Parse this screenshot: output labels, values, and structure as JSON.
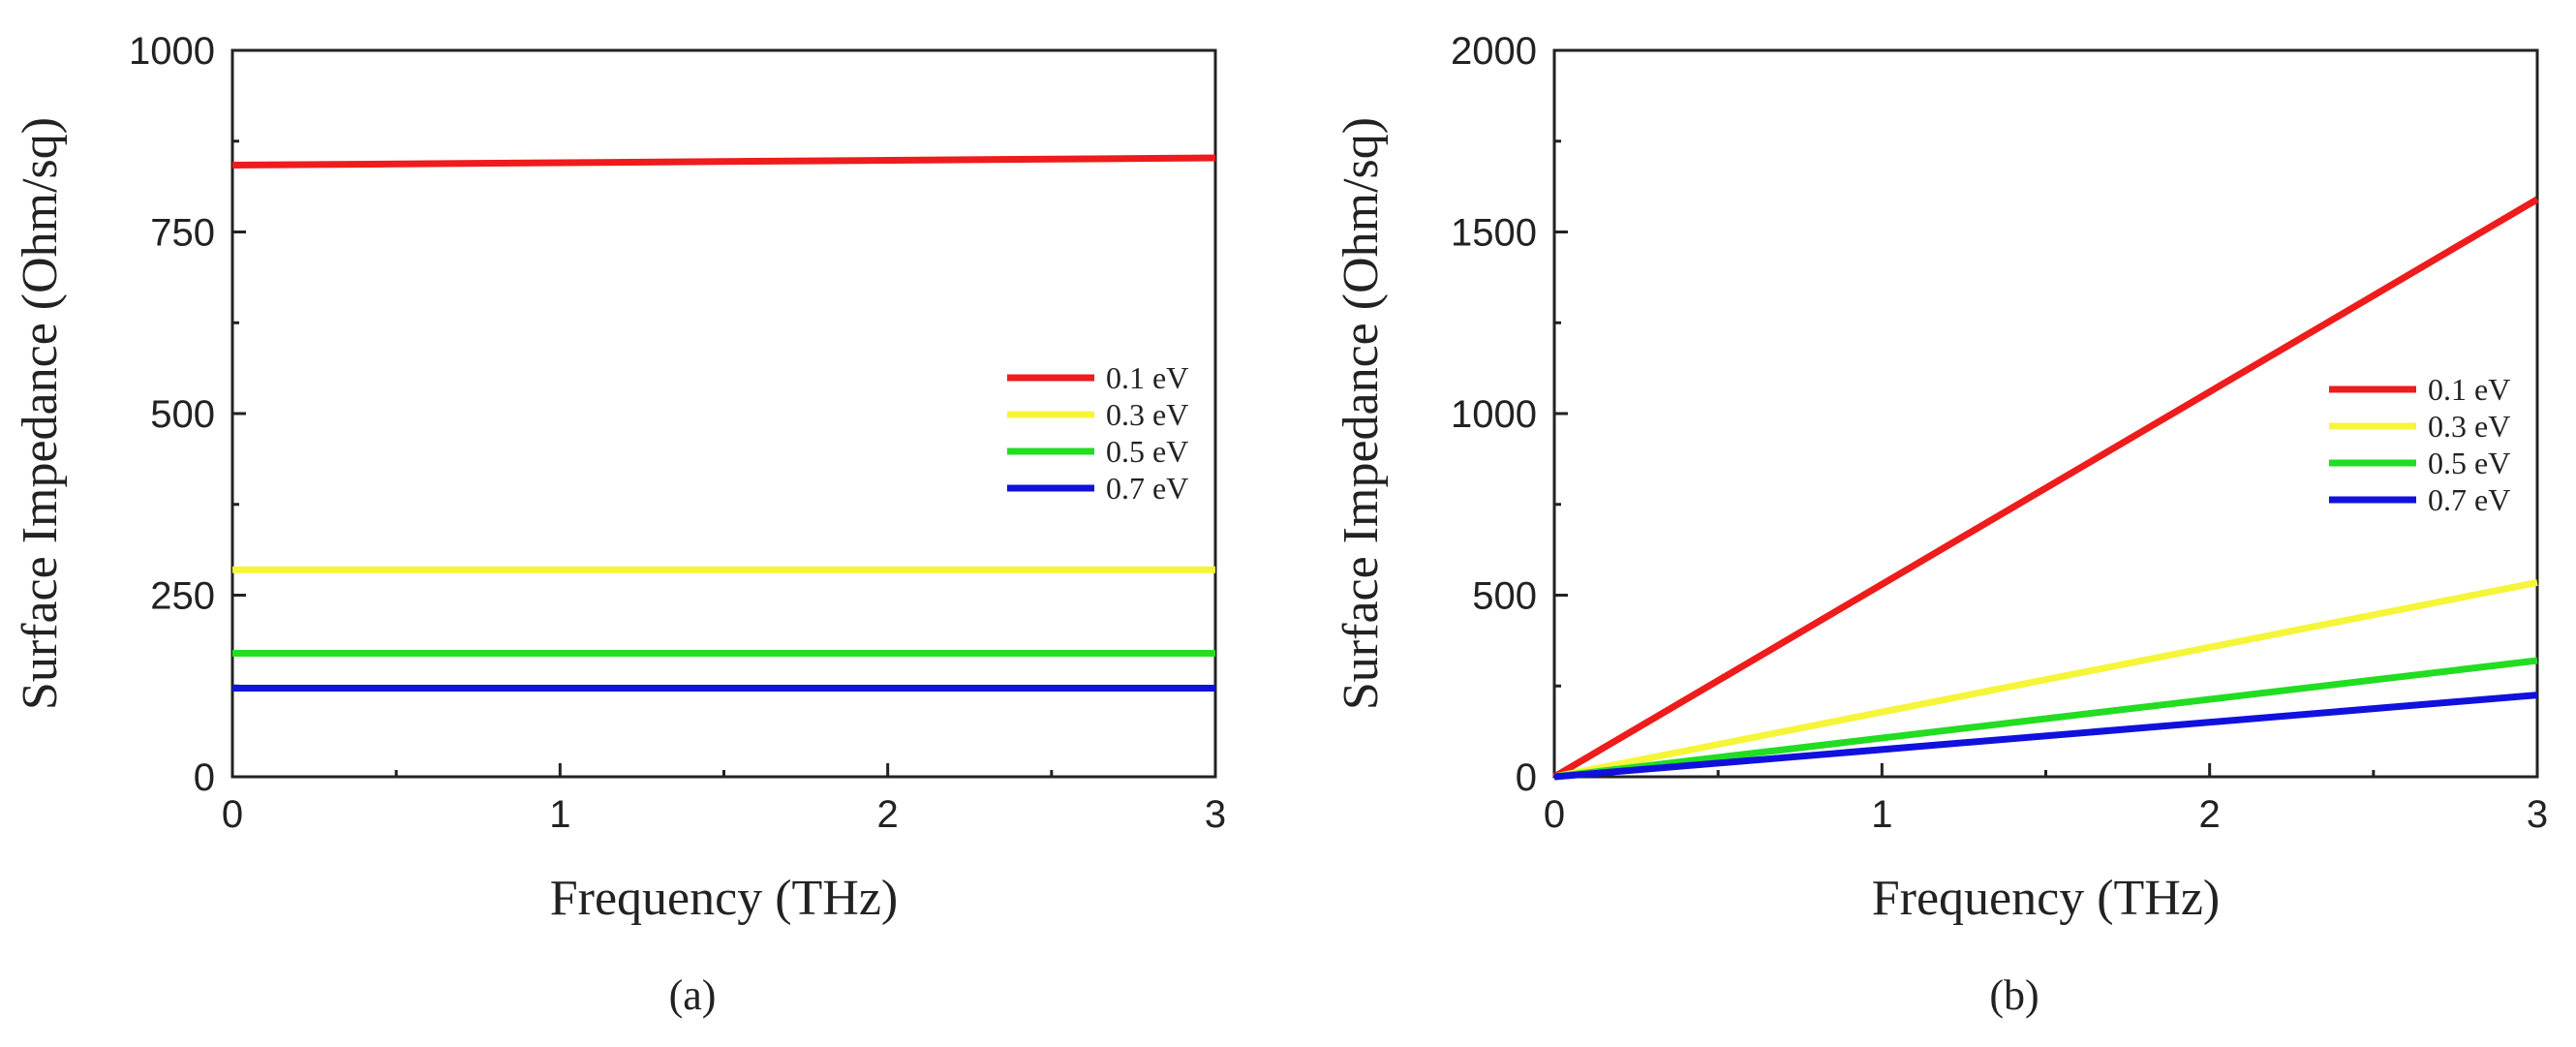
{
  "chart_data": [
    {
      "type": "line",
      "panel": "a",
      "caption": "(a)",
      "xlabel": "Frequency (THz)",
      "ylabel": "Surface Impedance (Ohm/sq)",
      "xlim": [
        0,
        3
      ],
      "ylim": [
        0,
        1000
      ],
      "x_ticks": [
        0,
        1,
        2,
        3
      ],
      "y_ticks": [
        0,
        250,
        500,
        750,
        1000
      ],
      "x_tick_labels": [
        "0",
        "1",
        "2",
        "3"
      ],
      "y_tick_labels": [
        "0",
        "250",
        "500",
        "750",
        "1000"
      ],
      "legend_position": "center-right",
      "series": [
        {
          "name": "0.1 eV",
          "color": "#ee1c1c",
          "x": [
            0,
            3
          ],
          "y": [
            842,
            852
          ]
        },
        {
          "name": "0.3 eV",
          "color": "#f5f53a",
          "x": [
            0,
            3
          ],
          "y": [
            285,
            285
          ]
        },
        {
          "name": "0.5 eV",
          "color": "#22dd22",
          "x": [
            0,
            3
          ],
          "y": [
            170,
            170
          ]
        },
        {
          "name": "0.7 eV",
          "color": "#1111dd",
          "x": [
            0,
            3
          ],
          "y": [
            122,
            122
          ]
        }
      ]
    },
    {
      "type": "line",
      "panel": "b",
      "caption": "(b)",
      "xlabel": "Frequency (THz)",
      "ylabel": "Surface Impedance (Ohm/sq)",
      "xlim": [
        0,
        3
      ],
      "ylim": [
        0,
        2000
      ],
      "x_ticks": [
        0,
        1,
        2,
        3
      ],
      "y_ticks": [
        0,
        500,
        1000,
        1500,
        2000
      ],
      "x_tick_labels": [
        "0",
        "1",
        "2",
        "3"
      ],
      "y_tick_labels": [
        "0",
        "500",
        "1000",
        "1500",
        "2000"
      ],
      "legend_position": "center-right",
      "series": [
        {
          "name": "0.1 eV",
          "color": "#ee1c1c",
          "x": [
            0,
            3
          ],
          "y": [
            0,
            1590
          ]
        },
        {
          "name": "0.3 eV",
          "color": "#f5f53a",
          "x": [
            0,
            3
          ],
          "y": [
            0,
            535
          ]
        },
        {
          "name": "0.5 eV",
          "color": "#22dd22",
          "x": [
            0,
            3
          ],
          "y": [
            0,
            320
          ]
        },
        {
          "name": "0.7 eV",
          "color": "#1111dd",
          "x": [
            0,
            3
          ],
          "y": [
            0,
            225
          ]
        }
      ]
    }
  ]
}
